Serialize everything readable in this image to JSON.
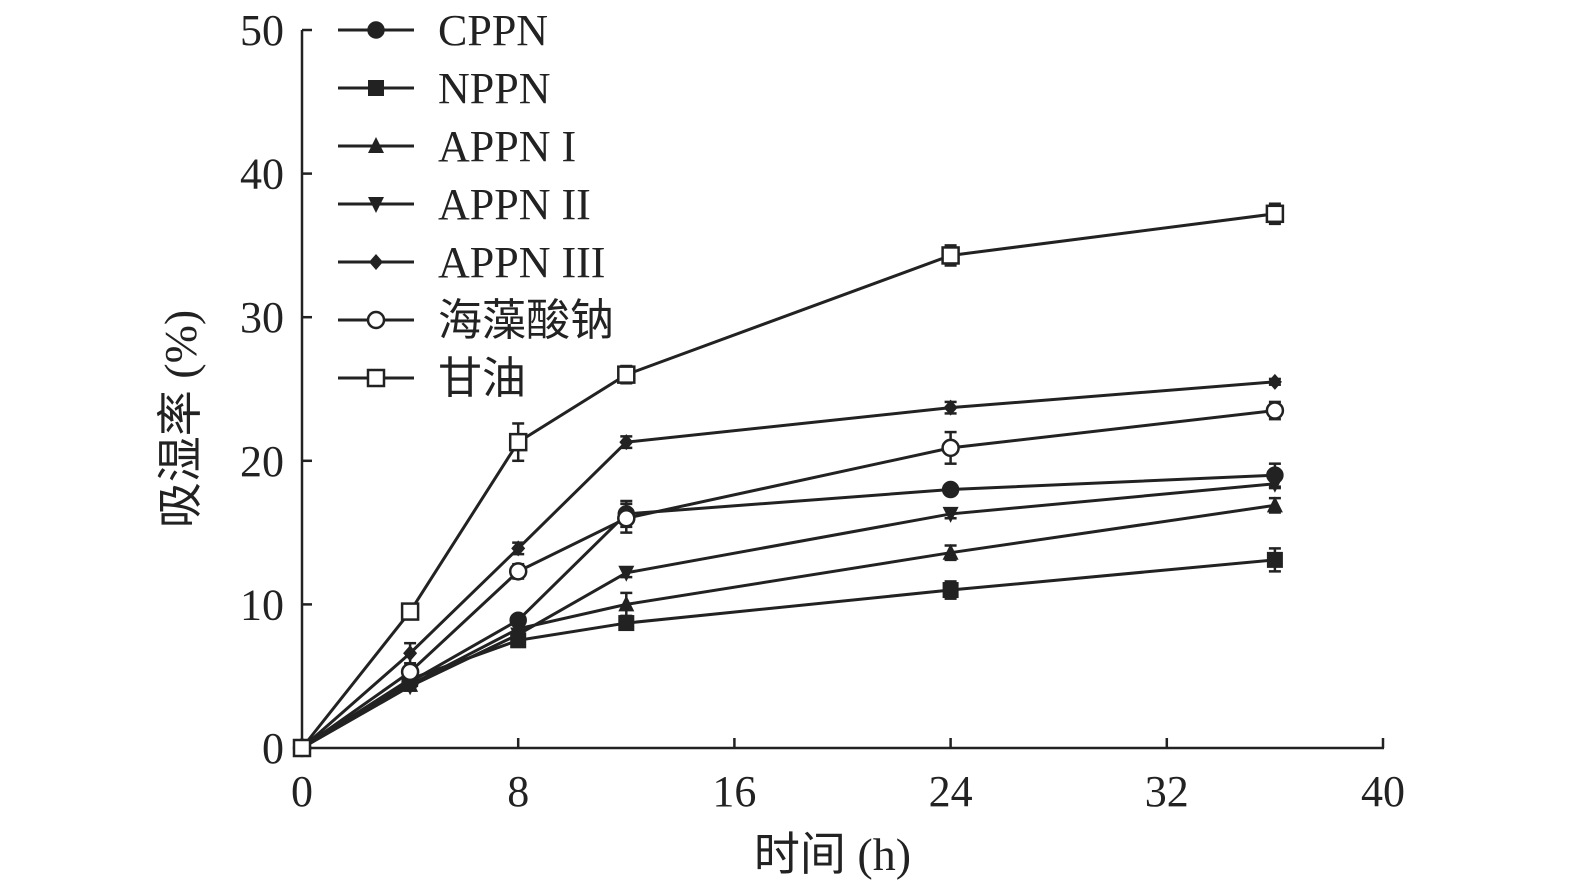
{
  "chart_data": {
    "type": "line",
    "xlabel": "时间 (h)",
    "ylabel": "吸湿率 (%)",
    "xlim": [
      0,
      40
    ],
    "ylim": [
      0,
      50
    ],
    "xticks": [
      "0",
      "8",
      "16",
      "24",
      "32",
      "40"
    ],
    "yticks": [
      "0",
      "10",
      "20",
      "30",
      "40",
      "50"
    ],
    "grid": false,
    "legend_position": "top-left",
    "x": [
      0,
      4,
      8,
      12,
      24,
      36
    ],
    "series": [
      {
        "name": "CPPN",
        "marker": "circle-filled",
        "values": [
          0,
          4.6,
          8.9,
          16.3,
          18.0,
          19.0
        ],
        "errors": [
          0,
          0.3,
          0.3,
          0.9,
          0.3,
          0.8
        ]
      },
      {
        "name": "NPPN",
        "marker": "square-filled",
        "values": [
          0,
          4.8,
          7.5,
          8.7,
          11.0,
          13.1
        ],
        "errors": [
          0,
          0.3,
          0.3,
          0.4,
          0.6,
          0.8
        ]
      },
      {
        "name": "APPN I",
        "marker": "triangle-up",
        "values": [
          0,
          4.4,
          8.3,
          10.0,
          13.6,
          16.9
        ],
        "errors": [
          0,
          0.3,
          0.3,
          0.8,
          0.5,
          0.5
        ]
      },
      {
        "name": "APPN II",
        "marker": "triangle-down",
        "values": [
          0,
          4.3,
          7.9,
          12.2,
          16.3,
          18.4
        ],
        "errors": [
          0,
          0.3,
          0.3,
          0.3,
          0.3,
          0.3
        ]
      },
      {
        "name": "APPN III",
        "marker": "diamond-filled",
        "values": [
          0,
          6.6,
          13.9,
          21.3,
          23.7,
          25.5
        ],
        "errors": [
          0,
          0.7,
          0.4,
          0.4,
          0.4,
          0.2
        ]
      },
      {
        "name": "海藻酸钠",
        "marker": "circle-open",
        "values": [
          0,
          5.3,
          12.3,
          16.0,
          20.9,
          23.5
        ],
        "errors": [
          0,
          0.4,
          0.5,
          1.0,
          1.1,
          0.6
        ]
      },
      {
        "name": "甘油",
        "marker": "square-open",
        "values": [
          0,
          9.5,
          21.3,
          26.0,
          34.3,
          37.2
        ],
        "errors": [
          0,
          0.4,
          1.3,
          0.6,
          0.7,
          0.7
        ]
      }
    ]
  }
}
